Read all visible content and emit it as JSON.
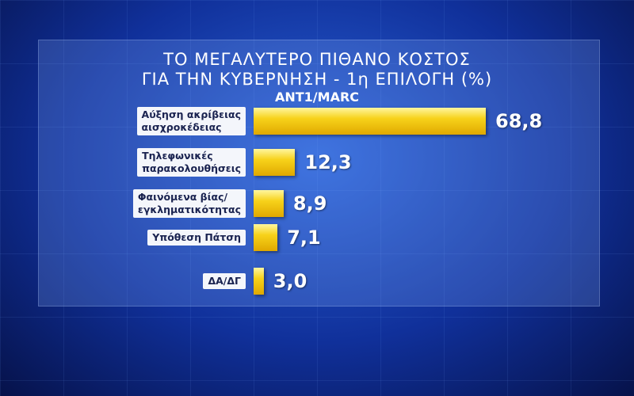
{
  "chart_data": {
    "type": "bar",
    "orientation": "horizontal",
    "title": "ΤΟ ΜΕΓΑΛΥΤΕΡΟ ΠΙΘΑΝΟ ΚΟΣΤΟΣ",
    "title_line2": "ΓΙΑ ΤΗΝ ΚΥΒΕΡΝΗΣΗ - 1η ΕΠΙΛΟΓΗ (%)",
    "subtitle": "ANT1/MARC",
    "categories": [
      "Αύξηση ακρίβειας\nαισχροκέδειας",
      "Τηλεφωνικές\nπαρακολουθήσεις",
      "Φαινόμενα βίας/\nεγκληματικότητας",
      "Υπόθεση Πάτση",
      "ΔΑ/ΔΓ"
    ],
    "values": [
      68.8,
      12.3,
      8.9,
      7.1,
      3.0
    ],
    "value_labels": [
      "68,8",
      "12,3",
      "8,9",
      "7,1",
      "3,0"
    ],
    "color": "#f2c200"
  }
}
